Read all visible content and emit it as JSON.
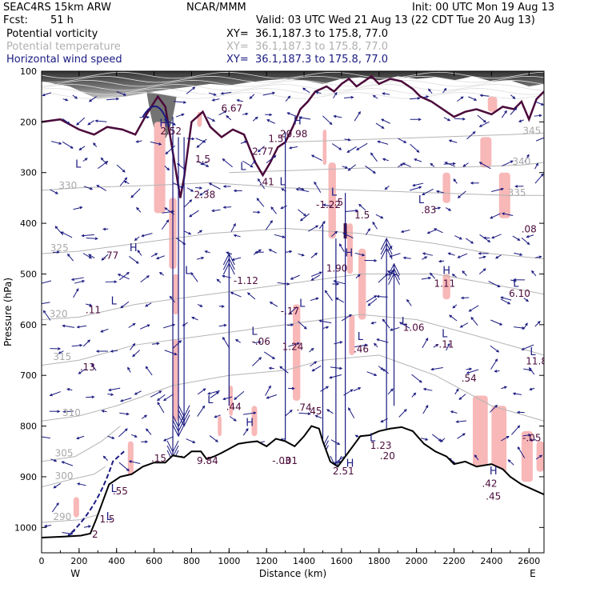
{
  "header": {
    "model": "SEAC4RS 15km ARW",
    "org": "NCAR/MMM",
    "init": "Init: 00 UTC Mon 19 Aug 13",
    "fcst_label": "Fcst:",
    "fcst_value": "51 h",
    "valid": "Valid: 03 UTC Wed 21 Aug 13 (22 CDT Tue 20 Aug 13)"
  },
  "fields": [
    {
      "name": "Potential vorticity",
      "xy": "XY=  36.1,187.3 to 175.8, 77.0",
      "color": "#000000"
    },
    {
      "name": "Potential temperature",
      "xy": "XY=  36.1,187.3 to 175.8, 77.0",
      "color": "#b0b0b0"
    },
    {
      "name": "Horizontal wind speed",
      "xy": "XY=  36.1,187.3 to 175.8, 77.0",
      "color": "#1a1a80"
    }
  ],
  "colors": {
    "pv_fill": "#f8b8b8",
    "pv_contour": "#4b0a3a",
    "theta": "#b4b4b4",
    "wind": "#1a1a80",
    "terrain": "#000000"
  },
  "chart_data": {
    "type": "cross-section",
    "xlabel": "Distance (km)",
    "ylabel": "Pressure (hPa)",
    "xlim": [
      0,
      2680
    ],
    "ylim": [
      1050,
      100
    ],
    "x_ticks": [
      0,
      200,
      400,
      600,
      800,
      1000,
      1200,
      1400,
      1600,
      1800,
      2000,
      2200,
      2400,
      2600
    ],
    "y_ticks": [
      100,
      200,
      300,
      400,
      500,
      600,
      700,
      800,
      900,
      1000
    ],
    "end_left": "W",
    "end_right": "E",
    "terrain": [
      [
        0,
        1020
      ],
      [
        120,
        1018
      ],
      [
        210,
        1016
      ],
      [
        260,
        1012
      ],
      [
        290,
        985
      ],
      [
        320,
        955
      ],
      [
        360,
        915
      ],
      [
        420,
        900
      ],
      [
        480,
        895
      ],
      [
        540,
        880
      ],
      [
        600,
        872
      ],
      [
        660,
        872
      ],
      [
        700,
        858
      ],
      [
        760,
        862
      ],
      [
        800,
        850
      ],
      [
        850,
        850
      ],
      [
        880,
        865
      ],
      [
        920,
        860
      ],
      [
        960,
        853
      ],
      [
        1000,
        845
      ],
      [
        1050,
        835
      ],
      [
        1100,
        832
      ],
      [
        1150,
        830
      ],
      [
        1200,
        840
      ],
      [
        1250,
        825
      ],
      [
        1300,
        830
      ],
      [
        1350,
        840
      ],
      [
        1400,
        820
      ],
      [
        1440,
        800
      ],
      [
        1480,
        805
      ],
      [
        1500,
        830
      ],
      [
        1540,
        870
      ],
      [
        1580,
        880
      ],
      [
        1620,
        860
      ],
      [
        1660,
        840
      ],
      [
        1700,
        820
      ],
      [
        1750,
        818
      ],
      [
        1800,
        810
      ],
      [
        1860,
        805
      ],
      [
        1920,
        802
      ],
      [
        1980,
        810
      ],
      [
        2040,
        835
      ],
      [
        2100,
        850
      ],
      [
        2160,
        860
      ],
      [
        2200,
        875
      ],
      [
        2260,
        870
      ],
      [
        2320,
        880
      ],
      [
        2400,
        875
      ],
      [
        2460,
        885
      ],
      [
        2500,
        900
      ],
      [
        2560,
        915
      ],
      [
        2620,
        925
      ],
      [
        2680,
        935
      ]
    ],
    "theta_labels": [
      {
        "text": "290",
        "x": 110,
        "p": 985
      },
      {
        "text": "300",
        "x": 120,
        "p": 905
      },
      {
        "text": "305",
        "x": 120,
        "p": 860
      },
      {
        "text": "310",
        "x": 160,
        "p": 780
      },
      {
        "text": "315",
        "x": 110,
        "p": 670
      },
      {
        "text": "320",
        "x": 90,
        "p": 585
      },
      {
        "text": "325",
        "x": 95,
        "p": 455
      },
      {
        "text": "330",
        "x": 140,
        "p": 332
      },
      {
        "text": "335",
        "x": 2535,
        "p": 346
      },
      {
        "text": "340",
        "x": 2560,
        "p": 285
      },
      {
        "text": "345",
        "x": 2615,
        "p": 224
      }
    ],
    "pv_labels": [
      {
        "text": "6.67",
        "x": 1015,
        "p": 180
      },
      {
        "text": "2.52",
        "x": 690,
        "p": 225
      },
      {
        "text": "1.5",
        "x": 860,
        "p": 280
      },
      {
        "text": "20.98",
        "x": 1345,
        "p": 230
      },
      {
        "text": "1.5",
        "x": 1250,
        "p": 240
      },
      {
        "text": "2.77",
        "x": 1180,
        "p": 265
      },
      {
        "text": ".41",
        "x": 1200,
        "p": 325
      },
      {
        "text": "2.38",
        "x": 870,
        "p": 350
      },
      {
        "text": "-1.22",
        "x": 1530,
        "p": 370
      },
      {
        "text": ".5",
        "x": 1585,
        "p": 365
      },
      {
        "text": ".83",
        "x": 2065,
        "p": 380
      },
      {
        "text": "1.5",
        "x": 1710,
        "p": 390
      },
      {
        "text": ".08",
        "x": 2600,
        "p": 418
      },
      {
        "text": ".77",
        "x": 370,
        "p": 470
      },
      {
        "text": "1.90",
        "x": 1575,
        "p": 495
      },
      {
        "text": "-1.12",
        "x": 1090,
        "p": 520
      },
      {
        "text": "1.11",
        "x": 2150,
        "p": 525
      },
      {
        "text": "6.10",
        "x": 2550,
        "p": 545
      },
      {
        "text": ".11",
        "x": 275,
        "p": 577
      },
      {
        "text": "-.17",
        "x": 1325,
        "p": 580
      },
      {
        "text": "1.06",
        "x": 1985,
        "p": 612
      },
      {
        "text": "-.06",
        "x": 1170,
        "p": 640
      },
      {
        "text": "1.24",
        "x": 1340,
        "p": 650
      },
      {
        "text": "-.11",
        "x": 2150,
        "p": 645
      },
      {
        "text": ".46",
        "x": 1705,
        "p": 655
      },
      {
        "text": "11.8",
        "x": 2640,
        "p": 678
      },
      {
        "text": ".13",
        "x": 245,
        "p": 690
      },
      {
        "text": ".54",
        "x": 2280,
        "p": 712
      },
      {
        "text": ".44",
        "x": 1025,
        "p": 768
      },
      {
        "text": ".74",
        "x": 1400,
        "p": 770
      },
      {
        "text": ".45",
        "x": 1455,
        "p": 777
      },
      {
        "text": "-.05",
        "x": 2615,
        "p": 830
      },
      {
        "text": "1.23",
        "x": 1810,
        "p": 845
      },
      {
        "text": ".20",
        "x": 1845,
        "p": 865
      },
      {
        "text": "9.84",
        "x": 885,
        "p": 875
      },
      {
        "text": ".15",
        "x": 625,
        "p": 870
      },
      {
        "text": "-.03",
        "x": 1280,
        "p": 875
      },
      {
        "text": ".01",
        "x": 1325,
        "p": 875
      },
      {
        "text": "2.51",
        "x": 1610,
        "p": 895
      },
      {
        "text": ".42",
        "x": 2390,
        "p": 920
      },
      {
        "text": ".55",
        "x": 420,
        "p": 935
      },
      {
        "text": ".45",
        "x": 2410,
        "p": 945
      },
      {
        "text": "1.5",
        "x": 350,
        "p": 990
      },
      {
        "text": "2",
        "x": 285,
        "p": 1020
      }
    ],
    "hl_labels": [
      {
        "text": "H",
        "x": 650,
        "p": 210
      },
      {
        "text": "H",
        "x": 1365,
        "p": 205
      },
      {
        "text": "L",
        "x": 1075,
        "p": 295
      },
      {
        "text": "L",
        "x": 1285,
        "p": 325
      },
      {
        "text": "L",
        "x": 195,
        "p": 290
      },
      {
        "text": "L",
        "x": 1560,
        "p": 345
      },
      {
        "text": "L",
        "x": 2025,
        "p": 360
      },
      {
        "text": "H",
        "x": 490,
        "p": 455
      },
      {
        "text": "H",
        "x": 1640,
        "p": 465
      },
      {
        "text": "L",
        "x": 780,
        "p": 500
      },
      {
        "text": "H",
        "x": 2160,
        "p": 500
      },
      {
        "text": "L",
        "x": 2530,
        "p": 525
      },
      {
        "text": "L",
        "x": 385,
        "p": 560
      },
      {
        "text": "L",
        "x": 1390,
        "p": 565
      },
      {
        "text": "L",
        "x": 1935,
        "p": 600
      },
      {
        "text": "L",
        "x": 2150,
        "p": 625
      },
      {
        "text": "L",
        "x": 1700,
        "p": 630
      },
      {
        "text": "L",
        "x": 1135,
        "p": 620
      },
      {
        "text": "L",
        "x": 2620,
        "p": 660
      },
      {
        "text": "L",
        "x": 900,
        "p": 755
      },
      {
        "text": "H",
        "x": 1110,
        "p": 800
      },
      {
        "text": "L",
        "x": 1765,
        "p": 830
      },
      {
        "text": "H",
        "x": 1645,
        "p": 880
      },
      {
        "text": "H",
        "x": 2410,
        "p": 895
      },
      {
        "text": "L",
        "x": 385,
        "p": 930
      },
      {
        "text": "L",
        "x": 360,
        "p": 985
      }
    ]
  }
}
